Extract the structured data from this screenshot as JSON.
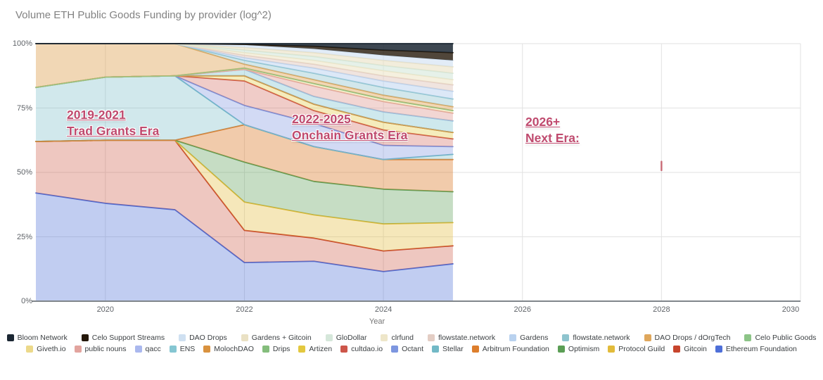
{
  "title": "Volume ETH Public Goods Funding by provider (log^2)",
  "chart_data": {
    "type": "area",
    "stacked": true,
    "unit": "percent",
    "title": "Volume ETH Public Goods Funding by provider (log^2)",
    "xlabel": "Year",
    "x": [
      2019,
      2020,
      2021,
      2022,
      2023,
      2024,
      2025
    ],
    "x_range": [
      2019,
      2030
    ],
    "x_ticks": [
      2020,
      2022,
      2024,
      2026,
      2028,
      2030
    ],
    "y_ticks_pct": [
      0,
      25,
      50,
      75,
      100
    ],
    "y_tick_labels": [
      "0%",
      "25%",
      "50%",
      "75%",
      "100%"
    ],
    "y_range_pct": [
      0,
      100
    ],
    "grid": true,
    "legend_position": "bottom",
    "legend_rows_split": 11,
    "axis_line_color": "#80868b",
    "gridline_color": "#e2e2e2",
    "series": [
      {
        "name": "Ethereum Foundation",
        "color": "#4e6fd8",
        "fill_opacity": 0.35,
        "values": [
          42,
          38,
          35.5,
          15,
          15.5,
          11.5,
          14.5
        ]
      },
      {
        "name": "Gitcoin",
        "color": "#c7452d",
        "fill_opacity": 0.3,
        "values": [
          20,
          24.5,
          27,
          12.5,
          9,
          8,
          7
        ]
      },
      {
        "name": "Protocol Guild",
        "color": "#e2bb3a",
        "fill_opacity": 0.35,
        "values": [
          0,
          0,
          0,
          11,
          9,
          10.5,
          9
        ]
      },
      {
        "name": "Optimism",
        "color": "#5b9e55",
        "fill_opacity": 0.35,
        "values": [
          0,
          0,
          0,
          15.5,
          13,
          13.5,
          12
        ]
      },
      {
        "name": "Arbitrum Foundation",
        "color": "#dd7e2c",
        "fill_opacity": 0.4,
        "values": [
          0,
          0,
          0,
          14.5,
          13.5,
          11.5,
          12.5
        ]
      },
      {
        "name": "Stellar",
        "color": "#72b9c6",
        "fill_opacity": 0.33,
        "values": [
          21,
          24.5,
          25,
          0,
          0,
          0,
          2
        ]
      },
      {
        "name": "Octant",
        "color": "#7d96e0",
        "fill_opacity": 0.35,
        "values": [
          0,
          0,
          0,
          7.5,
          9,
          5.5,
          3
        ]
      },
      {
        "name": "cultdao.io",
        "color": "#cd564a",
        "fill_opacity": 0.3,
        "values": [
          0,
          0,
          0,
          9.5,
          5,
          6,
          3
        ]
      },
      {
        "name": "Artizen",
        "color": "#e3c83f",
        "fill_opacity": 0.35,
        "values": [
          0,
          0,
          0,
          2,
          2.5,
          3,
          2.5
        ]
      },
      {
        "name": "Drips",
        "color": "#84bd7c",
        "fill_opacity": 0.35,
        "values": [
          0,
          0,
          0,
          0,
          0,
          0,
          0
        ]
      },
      {
        "name": "MolochDAO",
        "color": "#d9923f",
        "fill_opacity": 0.4,
        "values": [
          0,
          0,
          0,
          0,
          0,
          0,
          0
        ]
      },
      {
        "name": "ENS",
        "color": "#85c6d2",
        "fill_opacity": 0.4,
        "values": [
          0,
          0,
          0,
          2.5,
          3,
          4,
          4.5
        ]
      },
      {
        "name": "qacc",
        "color": "#aab8ee",
        "fill_opacity": 0.45,
        "stroke_opacity": 0.5,
        "values": [
          0,
          0,
          0,
          0,
          0,
          0,
          0
        ]
      },
      {
        "name": "public nouns",
        "color": "#e2a49e",
        "fill_opacity": 0.45,
        "values": [
          0,
          0,
          0,
          0,
          4,
          4,
          3
        ]
      },
      {
        "name": "Giveth.io",
        "color": "#ecd98a",
        "fill_opacity": 0.4,
        "values": [
          0,
          0,
          0,
          0.5,
          1,
          1,
          1
        ]
      },
      {
        "name": "Celo Public Goods",
        "color": "#8cc487",
        "fill_opacity": 0.4,
        "values": [
          0,
          0,
          0,
          0,
          0,
          0,
          0
        ]
      },
      {
        "name": "DAO Drops / dOrgTech",
        "color": "#dfa75c",
        "fill_opacity": 0.45,
        "values": [
          17,
          13,
          12.5,
          1.5,
          1.5,
          1.5,
          1.5
        ]
      },
      {
        "name": "flowstate.network",
        "color": "#8ec4ce",
        "fill_opacity": 0.4,
        "values": [
          0,
          0,
          0,
          1.5,
          2.5,
          3,
          3
        ]
      },
      {
        "name": "Gardens",
        "color": "#b9d2ef",
        "fill_opacity": 0.5,
        "values": [
          0,
          0,
          0,
          1,
          2,
          2.5,
          3
        ]
      },
      {
        "name": "flowstate.network",
        "color": "#e3cdc4",
        "fill_opacity": 0.55,
        "values": [
          0,
          0,
          0,
          1,
          1.5,
          2,
          2.5
        ]
      },
      {
        "name": "clrfund",
        "color": "#eee6c9",
        "fill_opacity": 0.6,
        "values": [
          0,
          0,
          0,
          1,
          1.5,
          2,
          2
        ]
      },
      {
        "name": "GloDollar",
        "color": "#d5e7da",
        "fill_opacity": 0.6,
        "values": [
          0,
          0,
          0,
          1,
          1.5,
          2,
          2.5
        ]
      },
      {
        "name": "Gardens + Gitcoin",
        "color": "#eae1c4",
        "fill_opacity": 0.6,
        "values": [
          0,
          0,
          0,
          1,
          1.5,
          2,
          2.5
        ]
      },
      {
        "name": "DAO Drops",
        "color": "#cfe0f1",
        "fill_opacity": 0.6,
        "values": [
          0,
          0,
          0,
          1,
          1.5,
          2,
          2.5
        ]
      },
      {
        "name": "Celo Support Streams",
        "color": "#241809",
        "fill_opacity": 0.8,
        "values": [
          0,
          0,
          0,
          0.25,
          1,
          2,
          3
        ]
      },
      {
        "name": "Bloom Network",
        "color": "#1b2733",
        "fill_opacity": 0.85,
        "values": [
          0,
          0,
          0,
          0.25,
          1,
          2.5,
          3.5
        ]
      }
    ],
    "annotations": [
      {
        "line1": "2019-2021",
        "line2": "Trad Grants Era",
        "x": 95,
        "y": 152
      },
      {
        "line1": "2022-2025",
        "line2": "Onchain Grants Era",
        "x": 415,
        "y": 158
      },
      {
        "line1": "2026+",
        "line2": "Next Era:",
        "x": 747,
        "y": 162
      }
    ],
    "annotation_color": "#bf4a6e",
    "stray_marker": {
      "year": 2028,
      "pct_from": 50.5,
      "pct_to": 54.5,
      "color": "#c96a75"
    }
  }
}
